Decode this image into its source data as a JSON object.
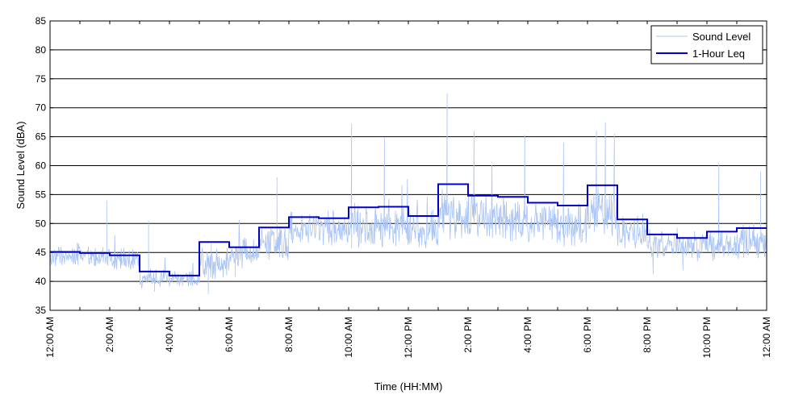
{
  "chart_data": {
    "type": "line",
    "title": "",
    "xlabel": "Time (HH:MM)",
    "ylabel": "Sound Level (dBA)",
    "ylim": [
      35,
      85
    ],
    "yticks": [
      35,
      40,
      45,
      50,
      55,
      60,
      65,
      70,
      75,
      80,
      85
    ],
    "xlim_hours": [
      0,
      24
    ],
    "xticks": [
      {
        "hour": 0,
        "label": "12:00 AM"
      },
      {
        "hour": 2,
        "label": "2:00 AM"
      },
      {
        "hour": 4,
        "label": "4:00 AM"
      },
      {
        "hour": 6,
        "label": "6:00 AM"
      },
      {
        "hour": 8,
        "label": "8:00 AM"
      },
      {
        "hour": 10,
        "label": "10:00 AM"
      },
      {
        "hour": 12,
        "label": "12:00 PM"
      },
      {
        "hour": 14,
        "label": "2:00 PM"
      },
      {
        "hour": 16,
        "label": "4:00 PM"
      },
      {
        "hour": 18,
        "label": "6:00 PM"
      },
      {
        "hour": 20,
        "label": "8:00 PM"
      },
      {
        "hour": 22,
        "label": "10:00 PM"
      },
      {
        "hour": 24,
        "label": "12:00 AM"
      }
    ],
    "grid": "horizontal",
    "legend_position": "top-right",
    "series": [
      {
        "name": "Sound Level",
        "color": "#a9c4f5",
        "style": "thin",
        "hourly_mean": [
          44.2,
          44.3,
          43.8,
          40.6,
          40.4,
          43.0,
          44.7,
          46.5,
          49.2,
          48.7,
          49.6,
          49.5,
          48.8,
          51.6,
          50.8,
          50.9,
          50.2,
          49.8,
          51.5,
          48.5,
          46.2,
          46.1,
          46.3,
          46.8
        ],
        "hourly_spread": [
          1.4,
          1.3,
          1.6,
          1.2,
          1.1,
          2.2,
          2.0,
          2.0,
          2.2,
          2.1,
          2.9,
          2.9,
          2.7,
          3.2,
          3.1,
          3.2,
          2.8,
          2.8,
          3.3,
          2.2,
          1.8,
          1.8,
          2.0,
          2.3
        ],
        "peaks": [
          {
            "hour": 1.9,
            "value": 54.0
          },
          {
            "hour": 3.3,
            "value": 50.5
          },
          {
            "hour": 5.4,
            "value": 46.5
          },
          {
            "hour": 7.6,
            "value": 58.0
          },
          {
            "hour": 10.1,
            "value": 67.2
          },
          {
            "hour": 11.2,
            "value": 64.8
          },
          {
            "hour": 13.3,
            "value": 72.5
          },
          {
            "hour": 14.2,
            "value": 66.0
          },
          {
            "hour": 15.9,
            "value": 65.3
          },
          {
            "hour": 17.2,
            "value": 64.0
          },
          {
            "hour": 18.3,
            "value": 66.0
          },
          {
            "hour": 18.6,
            "value": 67.5
          },
          {
            "hour": 18.9,
            "value": 65.5
          },
          {
            "hour": 22.4,
            "value": 60.5
          },
          {
            "hour": 23.8,
            "value": 59.0
          }
        ],
        "troughs": [
          {
            "hour": 3.5,
            "value": 38.2
          },
          {
            "hour": 5.3,
            "value": 37.8
          },
          {
            "hour": 6.2,
            "value": 40.8
          },
          {
            "hour": 20.2,
            "value": 41.2
          },
          {
            "hour": 21.2,
            "value": 42.0
          }
        ]
      },
      {
        "name": "1-Hour Leq",
        "color": "#0000cc",
        "style": "step",
        "hour_starts": [
          0,
          1,
          2,
          3,
          4,
          5,
          6,
          7,
          8,
          9,
          10,
          11,
          12,
          13,
          14,
          15,
          16,
          17,
          18,
          19,
          20,
          21,
          22,
          23
        ],
        "values": [
          45.1,
          44.9,
          44.5,
          41.7,
          41.0,
          46.8,
          45.9,
          49.3,
          51.1,
          50.9,
          52.8,
          52.9,
          51.3,
          56.8,
          54.8,
          54.6,
          53.6,
          53.1,
          56.6,
          50.7,
          48.1,
          47.5,
          48.6,
          49.2
        ]
      }
    ]
  }
}
